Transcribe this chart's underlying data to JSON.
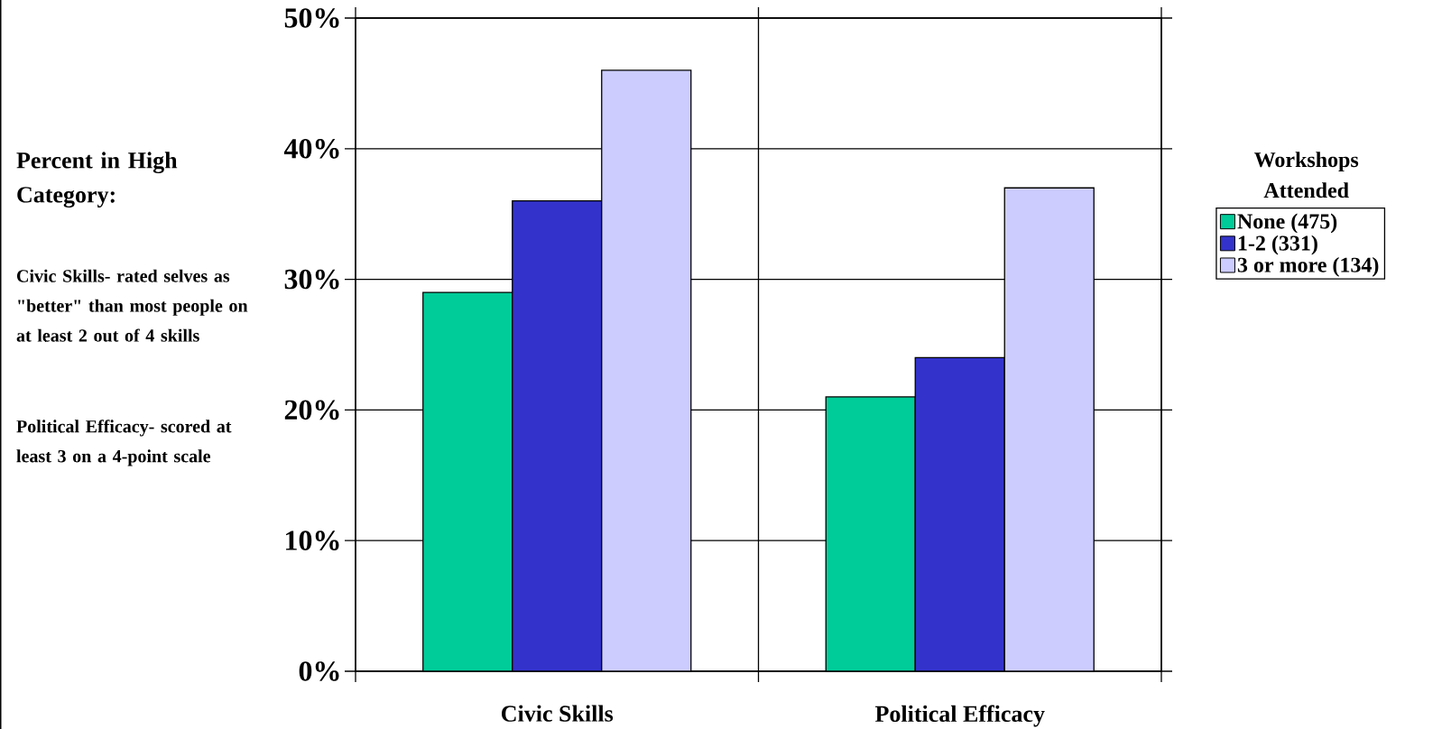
{
  "chart_data": {
    "type": "bar",
    "ylabel": "Percent in High Category:",
    "legend_title": "Workshops Attended",
    "categories": [
      "Civic Skills",
      "Political Efficacy"
    ],
    "series": [
      {
        "name": "None (475)",
        "color": "#00cc99",
        "values": [
          29,
          21
        ]
      },
      {
        "name": "1-2 (331)",
        "color": "#3333cc",
        "values": [
          36,
          24
        ]
      },
      {
        "name": "3 or more (134)",
        "color": "#ccccff",
        "values": [
          46,
          37
        ]
      }
    ],
    "ylim": [
      0,
      50
    ],
    "yticks": [
      {
        "value": 0,
        "label": "0%"
      },
      {
        "value": 10,
        "label": "10%"
      },
      {
        "value": 20,
        "label": "20%"
      },
      {
        "value": 30,
        "label": "30%"
      },
      {
        "value": 40,
        "label": "40%"
      },
      {
        "value": 50,
        "label": "50%"
      }
    ],
    "grid": true,
    "legend": "right",
    "annotations": [
      "Civic Skills- rated selves as \"better\" than most people on at least 2 out of 4 skills",
      "Political Efficacy- scored at least 3 on a 4-point scale"
    ]
  }
}
